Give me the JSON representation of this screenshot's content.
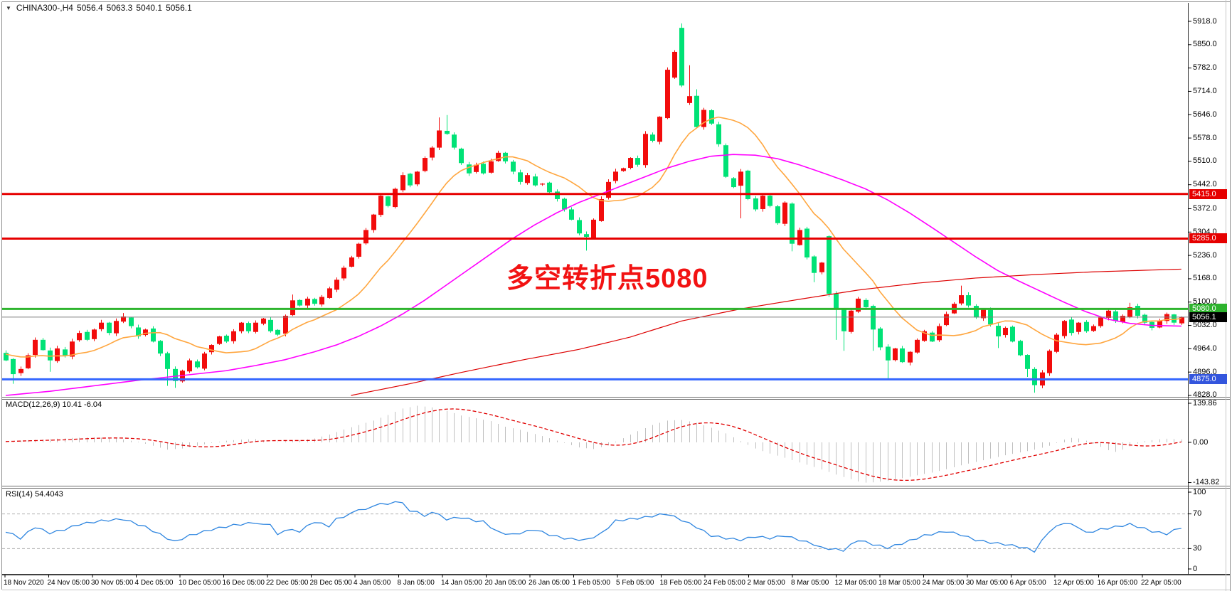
{
  "header": {
    "symbol_period": "CHINA300-,H4",
    "open": "5056.4",
    "high": "5063.3",
    "low": "5040.1",
    "close": "5056.1"
  },
  "main_panel": {
    "price_labels": [
      "5918.0",
      "5850.0",
      "5782.0",
      "5714.0",
      "5646.0",
      "5578.0",
      "5510.0",
      "5442.0",
      "5372.0",
      "5304.0",
      "5236.0",
      "5168.0",
      "5100.0",
      "5032.0",
      "4964.0",
      "4896.0",
      "4828.0"
    ],
    "badges": [
      {
        "text": "5415.0",
        "value": 5415,
        "bg": "#e60000"
      },
      {
        "text": "5285.0",
        "value": 5285,
        "bg": "#e60000"
      },
      {
        "text": "5080.0",
        "value": 5080,
        "bg": "#2db32d"
      },
      {
        "text": "5056.1",
        "value": 5056.1,
        "bg": "#000000"
      },
      {
        "text": "4875.0",
        "value": 4875,
        "bg": "#3355dd"
      }
    ],
    "hlines": [
      {
        "value": 5415,
        "color": "#e60000",
        "w": 3
      },
      {
        "value": 5285,
        "color": "#e60000",
        "w": 3
      },
      {
        "value": 5080,
        "color": "#2eb42e",
        "w": 3
      },
      {
        "value": 5056.1,
        "color": "#808080",
        "w": 1
      },
      {
        "value": 4875,
        "color": "#3366ff",
        "w": 3
      }
    ],
    "annotation": {
      "text": "多空转折点5080",
      "color": "#f21212"
    }
  },
  "macd_panel": {
    "label": "MACD(12,26,9) 10.41 -6.04",
    "scale_values": [
      139.86,
      0,
      -143.82
    ],
    "scale_labels": [
      "139.86",
      "0.00",
      "-143.82"
    ]
  },
  "rsi_panel": {
    "label": "RSI(14) 54.4043",
    "scale_values": [
      100,
      70,
      30,
      0
    ],
    "scale_labels": [
      "100",
      "70",
      "30",
      "0"
    ],
    "levels": [
      70,
      30
    ]
  },
  "time_axis": {
    "labels": [
      "18 Nov 2020",
      "24 Nov 05:00",
      "30 Nov 05:00",
      "4 Dec 05:00",
      "10 Dec 05:00",
      "16 Dec 05:00",
      "22 Dec 05:00",
      "28 Dec 05:00",
      "4 Jan 05:00",
      "8 Jan 05:00",
      "14 Jan 05:00",
      "20 Jan 05:00",
      "26 Jan 05:00",
      "1 Feb 05:00",
      "5 Feb 05:00",
      "18 Feb 05:00",
      "24 Feb 05:00",
      "2 Mar 05:00",
      "8 Mar 05:00",
      "12 Mar 05:00",
      "18 Mar 05:00",
      "24 Mar 05:00",
      "30 Mar 05:00",
      "6 Apr 05:00",
      "12 Apr 05:00",
      "16 Apr 05:00",
      "22 Apr 05:00"
    ]
  },
  "colors": {
    "bull": "#f20c0c",
    "bear": "#00e276",
    "ma_orange": "#ffa63f",
    "ma_magenta": "#ff00ff",
    "ma_red": "#dd0202",
    "macd_hist": "#c0c0c0",
    "macd_signal": "#e00000",
    "rsi": "#2f86e0",
    "level_dash": "#b0b0b0"
  },
  "chart_data": {
    "type": "candlestick",
    "symbol": "CHINA300-",
    "timeframe": "H4",
    "color_convention": "red=up, green=down",
    "bars": 161,
    "price_range": [
      4828,
      5918
    ],
    "closes": [
      4930,
      4890,
      4905,
      4945,
      4990,
      4960,
      4930,
      4965,
      4945,
      4985,
      5010,
      4990,
      5020,
      5040,
      5010,
      5045,
      5058,
      5030,
      5000,
      5020,
      4985,
      4950,
      4905,
      4870,
      4900,
      4930,
      4910,
      4950,
      4975,
      5000,
      4985,
      5015,
      5040,
      5015,
      5040,
      5052,
      5015,
      5005,
      5060,
      5105,
      5090,
      5110,
      5095,
      5115,
      5140,
      5165,
      5200,
      5230,
      5270,
      5310,
      5355,
      5410,
      5380,
      5430,
      5470,
      5440,
      5480,
      5520,
      5550,
      5600,
      5590,
      5550,
      5505,
      5475,
      5500,
      5475,
      5510,
      5535,
      5510,
      5480,
      5450,
      5470,
      5440,
      5445,
      5420,
      5400,
      5370,
      5340,
      5300,
      5290,
      5340,
      5400,
      5450,
      5480,
      5490,
      5520,
      5500,
      5590,
      5570,
      5640,
      5777,
      5829,
      5731,
      5700,
      5610,
      5660,
      5620,
      5560,
      5465,
      5435,
      5480,
      5400,
      5370,
      5410,
      5380,
      5330,
      5390,
      5270,
      5310,
      5230,
      5185,
      5215,
      5124,
      5080,
      5015,
      5075,
      5110,
      5085,
      5020,
      4968,
      4930,
      4965,
      4925,
      4955,
      4990,
      5015,
      4985,
      5030,
      5065,
      5095,
      5120,
      5090,
      5055,
      5080,
      5035,
      5000,
      5025,
      4985,
      4945,
      4905,
      4858,
      4895,
      4958,
      5005,
      5045,
      5010,
      5040,
      5015,
      5030,
      5055,
      5075,
      5045,
      5060,
      5085,
      5060,
      5040,
      5025,
      5045,
      5065,
      5040,
      5056
    ],
    "open_overrides": {
      "0": 4952,
      "91": 5754,
      "92": 5899,
      "93": 5680,
      "112": 5292
    },
    "high_overrides": {
      "16": 5068,
      "39": 5122,
      "59": 5638,
      "60": 5645,
      "92": 5912,
      "93": 5790,
      "94": 5720,
      "130": 5148,
      "153": 5098
    },
    "low_overrides": {
      "1": 4862,
      "6": 4897,
      "22": 4856,
      "23": 4850,
      "79": 5250,
      "100": 5344,
      "107": 5248,
      "110": 5158,
      "113": 4990,
      "114": 4958,
      "118": 4958,
      "120": 4876,
      "135": 4966,
      "139": 4882,
      "140": 4836
    },
    "ma": {
      "orange_period": 13,
      "magenta_path": [
        [
          0,
          4828
        ],
        [
          6,
          4840
        ],
        [
          12,
          4856
        ],
        [
          18,
          4872
        ],
        [
          24,
          4886
        ],
        [
          30,
          4900
        ],
        [
          34,
          4915
        ],
        [
          38,
          4932
        ],
        [
          42,
          4955
        ],
        [
          45,
          4975
        ],
        [
          48,
          5000
        ],
        [
          51,
          5030
        ],
        [
          54,
          5065
        ],
        [
          57,
          5105
        ],
        [
          60,
          5150
        ],
        [
          63,
          5195
        ],
        [
          66,
          5240
        ],
        [
          69,
          5285
        ],
        [
          72,
          5325
        ],
        [
          75,
          5360
        ],
        [
          78,
          5390
        ],
        [
          81,
          5415
        ],
        [
          84,
          5440
        ],
        [
          87,
          5465
        ],
        [
          90,
          5490
        ],
        [
          93,
          5510
        ],
        [
          96,
          5525
        ],
        [
          99,
          5530
        ],
        [
          102,
          5528
        ],
        [
          105,
          5518
        ],
        [
          108,
          5500
        ],
        [
          111,
          5478
        ],
        [
          114,
          5455
        ],
        [
          117,
          5430
        ],
        [
          120,
          5398
        ],
        [
          123,
          5360
        ],
        [
          126,
          5318
        ],
        [
          129,
          5275
        ],
        [
          132,
          5232
        ],
        [
          135,
          5192
        ],
        [
          138,
          5160
        ],
        [
          141,
          5130
        ],
        [
          144,
          5100
        ],
        [
          147,
          5072
        ],
        [
          150,
          5050
        ],
        [
          153,
          5038
        ],
        [
          156,
          5032
        ],
        [
          160,
          5030
        ]
      ],
      "red_path": [
        [
          47,
          4828
        ],
        [
          55,
          4862
        ],
        [
          62,
          4895
        ],
        [
          70,
          4930
        ],
        [
          78,
          4962
        ],
        [
          85,
          4998
        ],
        [
          92,
          5045
        ],
        [
          100,
          5080
        ],
        [
          108,
          5108
        ],
        [
          116,
          5135
        ],
        [
          124,
          5155
        ],
        [
          132,
          5170
        ],
        [
          140,
          5180
        ],
        [
          148,
          5188
        ],
        [
          154,
          5192
        ],
        [
          160,
          5196
        ]
      ]
    },
    "macd": {
      "params": "12,26,9",
      "current_main": 10.41,
      "current_signal": -6.04,
      "range": [
        -143.82,
        139.86
      ],
      "main_path": [
        [
          0,
          3
        ],
        [
          3,
          8
        ],
        [
          6,
          12
        ],
        [
          9,
          16
        ],
        [
          12,
          18
        ],
        [
          15,
          14
        ],
        [
          18,
          2
        ],
        [
          20,
          -12
        ],
        [
          22,
          -26
        ],
        [
          24,
          -22
        ],
        [
          26,
          -12
        ],
        [
          28,
          -2
        ],
        [
          30,
          6
        ],
        [
          32,
          10
        ],
        [
          34,
          12
        ],
        [
          36,
          0
        ],
        [
          38,
          4
        ],
        [
          40,
          8
        ],
        [
          42,
          14
        ],
        [
          44,
          28
        ],
        [
          46,
          46
        ],
        [
          48,
          62
        ],
        [
          50,
          78
        ],
        [
          52,
          98
        ],
        [
          54,
          121
        ],
        [
          56,
          131
        ],
        [
          58,
          125
        ],
        [
          60,
          113
        ],
        [
          62,
          96
        ],
        [
          64,
          86
        ],
        [
          66,
          76
        ],
        [
          68,
          56
        ],
        [
          70,
          45
        ],
        [
          72,
          30
        ],
        [
          74,
          15
        ],
        [
          76,
          -2
        ],
        [
          78,
          -18
        ],
        [
          80,
          -24
        ],
        [
          82,
          -10
        ],
        [
          84,
          15
        ],
        [
          86,
          40
        ],
        [
          88,
          62
        ],
        [
          90,
          78
        ],
        [
          92,
          80
        ],
        [
          94,
          70
        ],
        [
          96,
          52
        ],
        [
          98,
          32
        ],
        [
          100,
          4
        ],
        [
          102,
          -22
        ],
        [
          104,
          -40
        ],
        [
          106,
          -55
        ],
        [
          108,
          -72
        ],
        [
          110,
          -88
        ],
        [
          112,
          -106
        ],
        [
          114,
          -124
        ],
        [
          116,
          -140
        ],
        [
          117,
          -144
        ],
        [
          118,
          -143
        ],
        [
          120,
          -138
        ],
        [
          122,
          -128
        ],
        [
          124,
          -118
        ],
        [
          126,
          -108
        ],
        [
          128,
          -96
        ],
        [
          130,
          -82
        ],
        [
          132,
          -70
        ],
        [
          134,
          -58
        ],
        [
          136,
          -46
        ],
        [
          138,
          -36
        ],
        [
          140,
          -26
        ],
        [
          142,
          -12
        ],
        [
          143,
          -2
        ],
        [
          144,
          10
        ],
        [
          145,
          16
        ],
        [
          146,
          14
        ],
        [
          147,
          6
        ],
        [
          148,
          -4
        ],
        [
          149,
          -16
        ],
        [
          150,
          -28
        ],
        [
          151,
          -34
        ],
        [
          152,
          -26
        ],
        [
          153,
          -14
        ],
        [
          154,
          -4
        ],
        [
          155,
          4
        ],
        [
          156,
          8
        ],
        [
          157,
          11
        ],
        [
          158,
          13
        ],
        [
          159,
          12
        ],
        [
          160,
          10.41
        ]
      ]
    },
    "rsi": {
      "period": 14,
      "current": 54.4043,
      "path": [
        [
          0,
          50
        ],
        [
          2,
          42
        ],
        [
          4,
          55
        ],
        [
          6,
          48
        ],
        [
          8,
          52
        ],
        [
          10,
          58
        ],
        [
          13,
          62
        ],
        [
          16,
          64
        ],
        [
          19,
          55
        ],
        [
          22,
          42
        ],
        [
          23,
          38
        ],
        [
          25,
          45
        ],
        [
          28,
          52
        ],
        [
          31,
          57
        ],
        [
          34,
          60
        ],
        [
          35,
          57
        ],
        [
          36,
          59
        ],
        [
          37,
          45
        ],
        [
          38,
          52
        ],
        [
          40,
          50
        ],
        [
          42,
          61
        ],
        [
          44,
          56
        ],
        [
          45,
          64
        ],
        [
          47,
          70
        ],
        [
          48,
          76
        ],
        [
          49,
          74
        ],
        [
          50,
          80
        ],
        [
          52,
          82
        ],
        [
          54,
          84
        ],
        [
          55,
          72
        ],
        [
          56,
          74
        ],
        [
          57,
          66
        ],
        [
          58,
          73
        ],
        [
          60,
          64
        ],
        [
          62,
          66
        ],
        [
          64,
          62
        ],
        [
          65,
          61
        ],
        [
          67,
          49
        ],
        [
          69,
          46
        ],
        [
          71,
          50
        ],
        [
          72,
          52
        ],
        [
          74,
          46
        ],
        [
          76,
          42
        ],
        [
          77,
          41
        ],
        [
          79,
          40
        ],
        [
          81,
          47
        ],
        [
          83,
          62
        ],
        [
          85,
          64
        ],
        [
          87,
          66
        ],
        [
          89,
          69
        ],
        [
          90,
          70
        ],
        [
          92,
          63
        ],
        [
          94,
          55
        ],
        [
          96,
          45
        ],
        [
          98,
          42
        ],
        [
          100,
          40
        ],
        [
          102,
          44
        ],
        [
          104,
          42
        ],
        [
          106,
          45
        ],
        [
          108,
          40
        ],
        [
          110,
          35
        ],
        [
          111,
          31
        ],
        [
          113,
          29
        ],
        [
          114,
          28
        ],
        [
          116,
          40
        ],
        [
          118,
          35
        ],
        [
          120,
          31
        ],
        [
          122,
          36
        ],
        [
          125,
          45
        ],
        [
          128,
          50
        ],
        [
          130,
          46
        ],
        [
          132,
          40
        ],
        [
          134,
          37
        ],
        [
          136,
          35
        ],
        [
          138,
          32
        ],
        [
          139,
          30
        ],
        [
          140,
          27
        ],
        [
          142,
          50
        ],
        [
          144,
          60
        ],
        [
          146,
          55
        ],
        [
          147,
          48
        ],
        [
          149,
          52
        ],
        [
          151,
          55
        ],
        [
          153,
          58
        ],
        [
          155,
          53
        ],
        [
          156,
          50
        ],
        [
          158,
          47
        ],
        [
          159,
          51
        ],
        [
          160,
          54.4
        ]
      ]
    }
  }
}
